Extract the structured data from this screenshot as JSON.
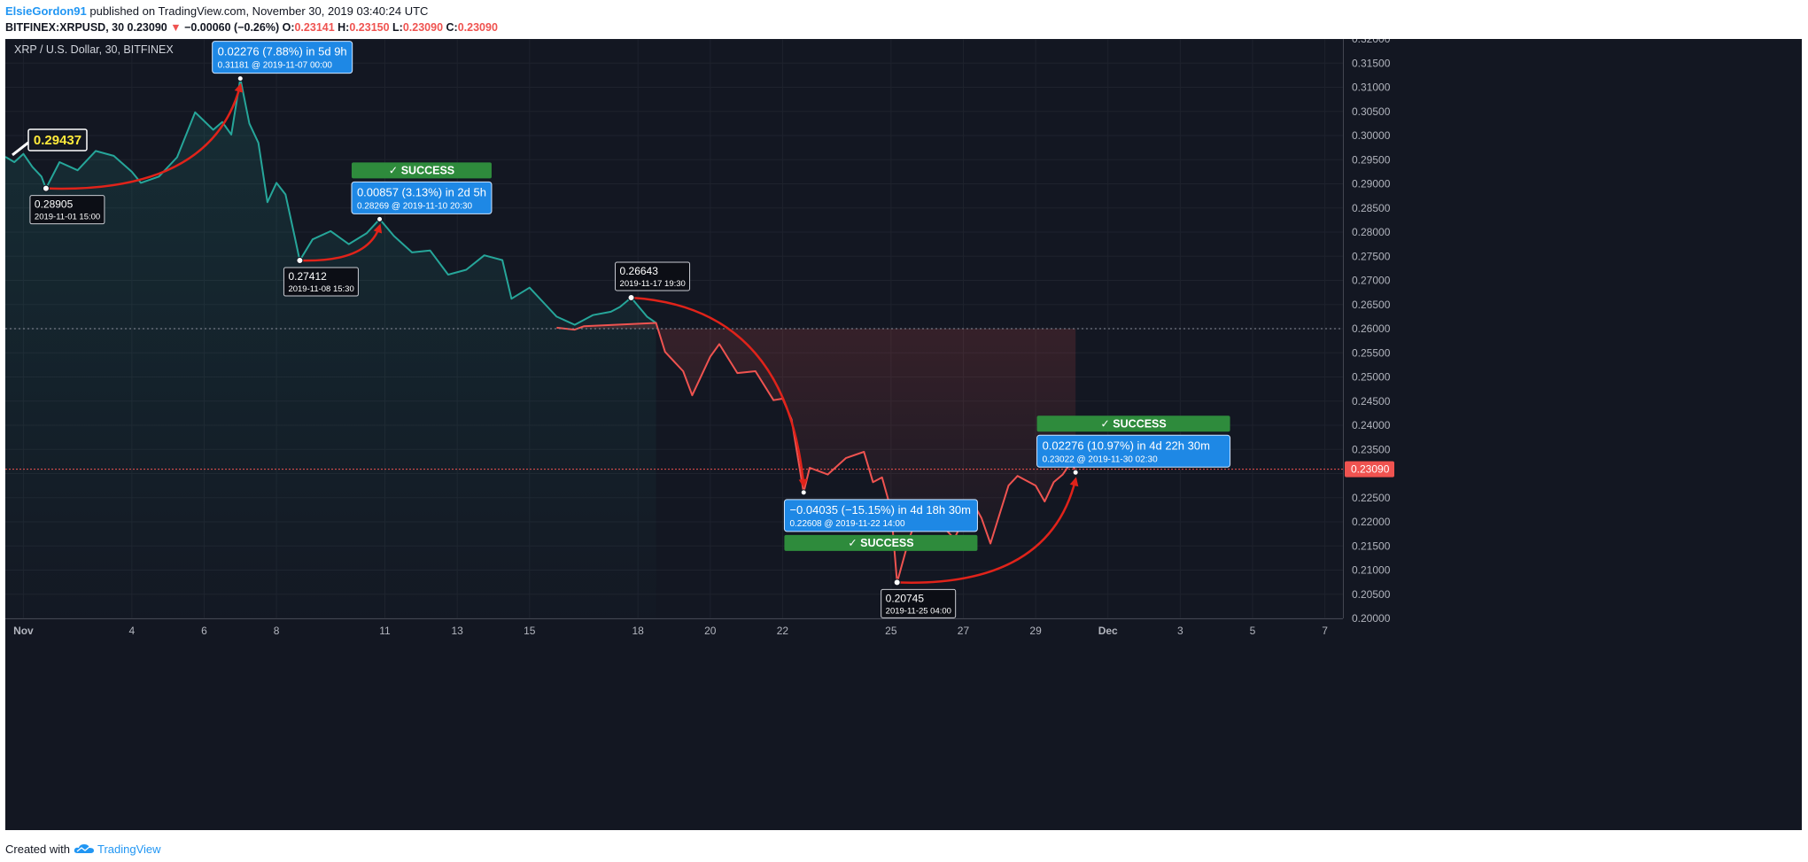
{
  "header": {
    "author": "ElsieGordon91",
    "published": " published on TradingView.com, November 30, 2019 03:40:24 UTC",
    "symbol_line": "BITFINEX:XRPUSD, 30",
    "last": "0.23090",
    "change": "−0.00060 (−0.26%)",
    "ohlc": {
      "O": "0.23141",
      "H": "0.23150",
      "L": "0.23090",
      "C": "0.23090"
    }
  },
  "chart_title": "XRP / U.S. Dollar, 30, BITFINEX",
  "footer": {
    "created": "Created with",
    "brand": "TradingView"
  },
  "colors": {
    "bg": "#131722",
    "up": "#26a69a",
    "down": "#ef5350",
    "arrow": "#e0231a",
    "label": "#1e88e5",
    "success": "#2e8b3c"
  },
  "chart_data": {
    "type": "line",
    "y_axis": {
      "min": 0.2,
      "max": 0.32,
      "step": 0.005,
      "side": "right"
    },
    "x_ticks": [
      {
        "label": "Nov",
        "date": "2019-11-01"
      },
      {
        "label": "4",
        "date": "2019-11-04"
      },
      {
        "label": "6",
        "date": "2019-11-06"
      },
      {
        "label": "8",
        "date": "2019-11-08"
      },
      {
        "label": "11",
        "date": "2019-11-11"
      },
      {
        "label": "13",
        "date": "2019-11-13"
      },
      {
        "label": "15",
        "date": "2019-11-15"
      },
      {
        "label": "18",
        "date": "2019-11-18"
      },
      {
        "label": "20",
        "date": "2019-11-20"
      },
      {
        "label": "22",
        "date": "2019-11-22"
      },
      {
        "label": "25",
        "date": "2019-11-25"
      },
      {
        "label": "27",
        "date": "2019-11-27"
      },
      {
        "label": "29",
        "date": "2019-11-29"
      },
      {
        "label": "Dec",
        "date": "2019-12-01"
      },
      {
        "label": "3",
        "date": "2019-12-03"
      },
      {
        "label": "5",
        "date": "2019-12-05"
      },
      {
        "label": "7",
        "date": "2019-12-07"
      }
    ],
    "reference_line": 0.26,
    "last_price": {
      "value": 0.2309,
      "label": "0.23090"
    },
    "price_badge": {
      "value": "0.29437",
      "date": "2019-10-31 12:00"
    },
    "series": [
      {
        "color": "up",
        "points": [
          [
            "2019-10-31 12:00",
            0.2956
          ],
          [
            "2019-10-31 18:00",
            0.2945
          ],
          [
            "2019-11-01 00:00",
            0.2962
          ],
          [
            "2019-11-01 06:00",
            0.2935
          ],
          [
            "2019-11-01 12:00",
            0.2915
          ],
          [
            "2019-11-01 15:00",
            0.28905
          ],
          [
            "2019-11-02 00:00",
            0.2945
          ],
          [
            "2019-11-02 12:00",
            0.2928
          ],
          [
            "2019-11-03 00:00",
            0.2968
          ],
          [
            "2019-11-03 12:00",
            0.2958
          ],
          [
            "2019-11-04 00:00",
            0.2925
          ],
          [
            "2019-11-04 06:00",
            0.2902
          ],
          [
            "2019-11-04 18:00",
            0.2915
          ],
          [
            "2019-11-05 06:00",
            0.2955
          ],
          [
            "2019-11-05 18:00",
            0.3048
          ],
          [
            "2019-11-06 06:00",
            0.3012
          ],
          [
            "2019-11-06 12:00",
            0.3028
          ],
          [
            "2019-11-06 18:00",
            0.3002
          ],
          [
            "2019-11-07 00:00",
            0.31181
          ],
          [
            "2019-11-07 06:00",
            0.3025
          ],
          [
            "2019-11-07 12:00",
            0.2985
          ],
          [
            "2019-11-07 18:00",
            0.2862
          ],
          [
            "2019-11-08 00:00",
            0.2902
          ],
          [
            "2019-11-08 06:00",
            0.2878
          ],
          [
            "2019-11-08 12:00",
            0.2792
          ],
          [
            "2019-11-08 15:30",
            0.27412
          ],
          [
            "2019-11-09 00:00",
            0.2785
          ],
          [
            "2019-11-09 12:00",
            0.2802
          ],
          [
            "2019-11-10 00:00",
            0.2775
          ],
          [
            "2019-11-10 12:00",
            0.2798
          ],
          [
            "2019-11-10 20:30",
            0.28269
          ],
          [
            "2019-11-11 06:00",
            0.2792
          ],
          [
            "2019-11-11 18:00",
            0.2758
          ],
          [
            "2019-11-12 06:00",
            0.2762
          ],
          [
            "2019-11-12 18:00",
            0.2712
          ],
          [
            "2019-11-13 06:00",
            0.2722
          ],
          [
            "2019-11-13 18:00",
            0.2752
          ],
          [
            "2019-11-14 06:00",
            0.2742
          ],
          [
            "2019-11-14 12:00",
            0.2662
          ],
          [
            "2019-11-15 00:00",
            0.2685
          ],
          [
            "2019-11-15 12:00",
            0.2645
          ],
          [
            "2019-11-15 18:00",
            0.2625
          ],
          [
            "2019-11-16 06:00",
            0.2608
          ],
          [
            "2019-11-16 18:00",
            0.2628
          ],
          [
            "2019-11-17 06:00",
            0.2635
          ],
          [
            "2019-11-17 12:00",
            0.2645
          ],
          [
            "2019-11-17 19:30",
            0.26643
          ],
          [
            "2019-11-18 06:00",
            0.2625
          ],
          [
            "2019-11-18 12:00",
            0.2612
          ]
        ]
      },
      {
        "color": "down",
        "points": [
          [
            "2019-11-15 18:00",
            0.2602
          ],
          [
            "2019-11-16 06:00",
            0.2598
          ],
          [
            "2019-11-16 12:00",
            0.2605
          ],
          [
            "2019-11-18 12:00",
            0.2612
          ],
          [
            "2019-11-18 18:00",
            0.2552
          ],
          [
            "2019-11-19 06:00",
            0.2512
          ],
          [
            "2019-11-19 12:00",
            0.2462
          ],
          [
            "2019-11-20 00:00",
            0.2542
          ],
          [
            "2019-11-20 06:00",
            0.2568
          ],
          [
            "2019-11-20 18:00",
            0.2508
          ],
          [
            "2019-11-21 06:00",
            0.2512
          ],
          [
            "2019-11-21 18:00",
            0.2452
          ],
          [
            "2019-11-22 00:00",
            0.2455
          ],
          [
            "2019-11-22 06:00",
            0.2412
          ],
          [
            "2019-11-22 14:00",
            0.22608
          ],
          [
            "2019-11-22 18:00",
            0.2312
          ],
          [
            "2019-11-23 06:00",
            0.2298
          ],
          [
            "2019-11-23 18:00",
            0.2332
          ],
          [
            "2019-11-24 06:00",
            0.2345
          ],
          [
            "2019-11-24 12:00",
            0.2282
          ],
          [
            "2019-11-24 18:00",
            0.2292
          ],
          [
            "2019-11-25 00:00",
            0.2225
          ],
          [
            "2019-11-25 04:00",
            0.20745
          ],
          [
            "2019-11-25 12:00",
            0.2165
          ],
          [
            "2019-11-25 18:00",
            0.2215
          ],
          [
            "2019-11-26 06:00",
            0.2205
          ],
          [
            "2019-11-26 12:00",
            0.2185
          ],
          [
            "2019-11-26 18:00",
            0.2165
          ],
          [
            "2019-11-27 06:00",
            0.2242
          ],
          [
            "2019-11-27 12:00",
            0.2208
          ],
          [
            "2019-11-27 18:00",
            0.2155
          ],
          [
            "2019-11-28 06:00",
            0.2275
          ],
          [
            "2019-11-28 12:00",
            0.2295
          ],
          [
            "2019-11-29 00:00",
            0.2275
          ],
          [
            "2019-11-29 06:00",
            0.2242
          ],
          [
            "2019-11-29 12:00",
            0.2282
          ],
          [
            "2019-11-29 18:00",
            0.2298
          ],
          [
            "2019-11-30 00:00",
            0.2325
          ],
          [
            "2019-11-30 02:30",
            0.23022
          ]
        ]
      }
    ],
    "swing_points": [
      {
        "price": "0.28905",
        "date": "2019-11-01 15:00"
      },
      {
        "price": "0.27412",
        "date": "2019-11-08 15:30"
      },
      {
        "price": "0.26643",
        "date": "2019-11-17 19:30"
      },
      {
        "price": "0.20745",
        "date": "2019-11-25 04:00"
      }
    ],
    "projections": [
      {
        "from": "2019-11-01 15:00",
        "from_price": 0.28905,
        "to": "2019-11-07 00:00",
        "to_price": 0.31181,
        "status": "SUCCESS",
        "change": "0.02276 (7.88%) in 5d 9h",
        "target": "0.31181 @ 2019-11-07  00:00",
        "position": "above"
      },
      {
        "from": "2019-11-08 15:30",
        "from_price": 0.27412,
        "to": "2019-11-10 20:30",
        "to_price": 0.28269,
        "status": "SUCCESS",
        "change": "0.00857 (3.13%) in 2d 5h",
        "target": "0.28269 @ 2019-11-10  20:30",
        "position": "above"
      },
      {
        "from": "2019-11-17 19:30",
        "from_price": 0.26643,
        "to": "2019-11-22 14:00",
        "to_price": 0.22608,
        "status": "SUCCESS",
        "change": "−0.04035 (−15.15%) in 4d 18h 30m",
        "target": "0.22608 @ 2019-11-22  14:00",
        "position": "below"
      },
      {
        "from": "2019-11-25 04:00",
        "from_price": 0.20745,
        "to": "2019-11-30 02:30",
        "to_price": 0.23022,
        "status": "SUCCESS",
        "change": "0.02276 (10.97%) in 4d 22h 30m",
        "target": "0.23022 @ 2019-11-30  02:30",
        "position": "above"
      }
    ]
  }
}
